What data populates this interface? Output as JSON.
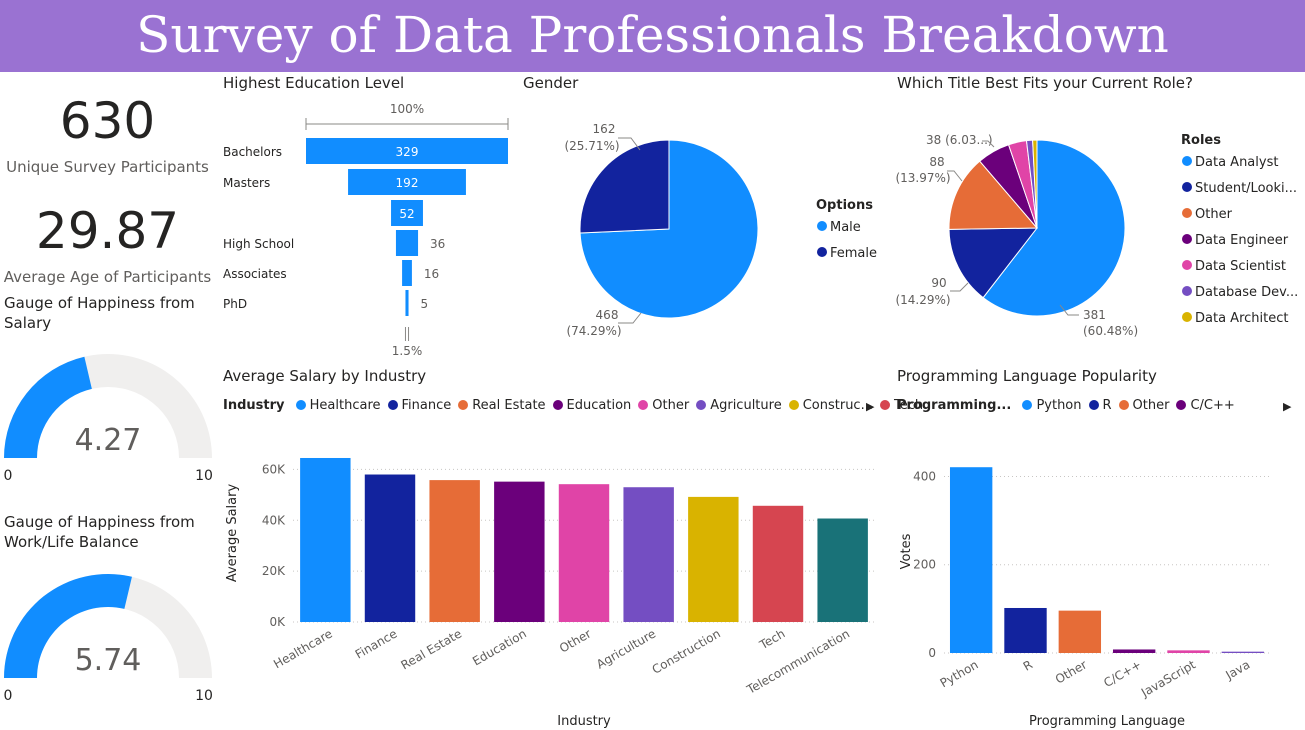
{
  "header": {
    "title": "Survey of Data Professionals Breakdown"
  },
  "kpis": {
    "participants": {
      "value": "630",
      "label": "Unique Survey Participants"
    },
    "age": {
      "value": "29.87",
      "label": "Average Age of Participants"
    }
  },
  "gauges": [
    {
      "title_line1": "Gauge of Happiness from",
      "title_line2": "Salary",
      "value": 4.27,
      "value_label": "4.27",
      "min": 0,
      "max": 10,
      "min_label": "0",
      "max_label": "10",
      "fill_color": "#118dff",
      "track_color": "#f0efee"
    },
    {
      "title_line1": "Gauge of Happiness from",
      "title_line2": "Work/Life Balance",
      "value": 5.74,
      "value_label": "5.74",
      "min": 0,
      "max": 10,
      "min_label": "0",
      "max_label": "10",
      "fill_color": "#118dff",
      "track_color": "#f0efee"
    }
  ],
  "chart_data": [
    {
      "type": "bar",
      "title": "Highest Education Level",
      "categories": [
        "Bachelors",
        "Masters",
        "",
        "High School",
        "Associates",
        "PhD"
      ],
      "values": [
        329,
        192,
        52,
        36,
        16,
        5
      ],
      "top_label": "100%",
      "bottom_label": "1.5%",
      "color": "#118dff"
    },
    {
      "type": "pie",
      "title": "Gender",
      "legend_title": "Options",
      "legend_position": "right",
      "categories": [
        "Male",
        "Female"
      ],
      "values": [
        468,
        162
      ],
      "percent_labels": [
        "(74.29%)",
        "(25.71%)"
      ],
      "colors": [
        "#118dff",
        "#12239e"
      ]
    },
    {
      "type": "pie",
      "title": "Which Title Best Fits your Current Role?",
      "legend_title": "Roles",
      "legend_position": "right",
      "categories": [
        "Data Analyst",
        "Student/Looki...",
        "Other",
        "Data Engineer",
        "Data Scientist",
        "Database Dev...",
        "Data Architect"
      ],
      "values": [
        381,
        90,
        88,
        38,
        21,
        7,
        5
      ],
      "labels": [
        {
          "value": "381",
          "percent": "(60.48%)"
        },
        {
          "value": "90",
          "percent": "(14.29%)"
        },
        {
          "value": "88",
          "percent": "(13.97%)"
        },
        {
          "value": "38 (6.03...)",
          "percent": ""
        }
      ],
      "colors": [
        "#118dff",
        "#12239e",
        "#e66c37",
        "#6b007b",
        "#e044a7",
        "#744ec2",
        "#d9b300"
      ]
    },
    {
      "type": "bar",
      "title": "Average Salary by Industry",
      "legend_title": "Industry",
      "legend_items": [
        "Healthcare",
        "Finance",
        "Real Estate",
        "Education",
        "Other",
        "Agriculture",
        "Construc...",
        "Tech"
      ],
      "categories": [
        "Healthcare",
        "Finance",
        "Real Estate",
        "Education",
        "Other",
        "Agriculture",
        "Construction",
        "Tech",
        "Telecommunication"
      ],
      "values": [
        64500,
        58000,
        55800,
        55200,
        54200,
        53000,
        49200,
        45700,
        40700
      ],
      "xlabel": "Industry",
      "ylabel": "Average Salary",
      "yticks": [
        "0K",
        "20K",
        "40K",
        "60K"
      ],
      "ylim": [
        0,
        70000
      ],
      "colors": [
        "#118dff",
        "#12239e",
        "#e66c37",
        "#6b007b",
        "#e044a7",
        "#744ec2",
        "#d9b300",
        "#d64550",
        "#197278"
      ]
    },
    {
      "type": "bar",
      "title": "Programming Language Popularity",
      "legend_title": "Programming...",
      "legend_items": [
        "Python",
        "R",
        "Other",
        "C/C++"
      ],
      "categories": [
        "Python",
        "R",
        "Other",
        "C/C++",
        "JavaScript",
        "Java"
      ],
      "values": [
        421,
        102,
        96,
        8,
        6,
        3
      ],
      "xlabel": "Programming Language",
      "ylabel": "Votes",
      "yticks": [
        "0",
        "200",
        "400"
      ],
      "ylim": [
        0,
        460
      ],
      "colors": [
        "#118dff",
        "#12239e",
        "#e66c37",
        "#6b007b",
        "#e044a7",
        "#744ec2"
      ]
    }
  ]
}
